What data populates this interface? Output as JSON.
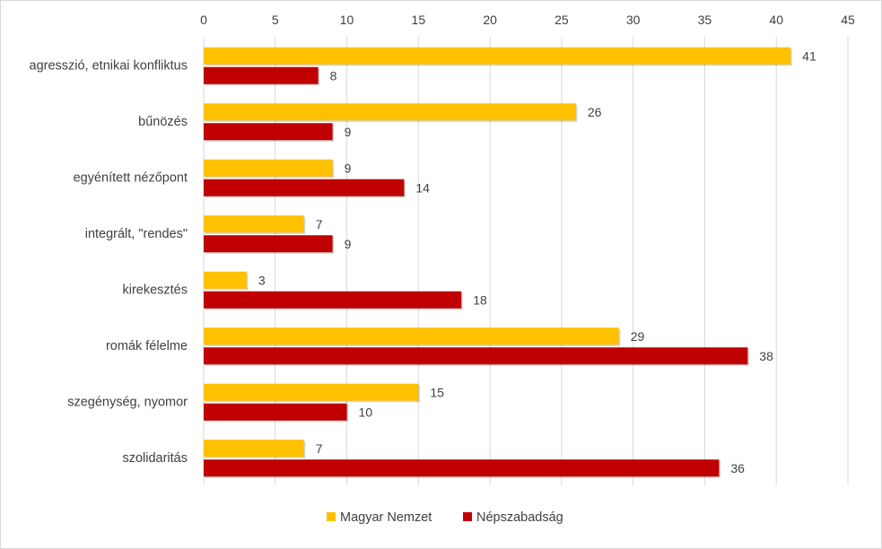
{
  "chart_data": {
    "type": "bar",
    "orientation": "horizontal",
    "categories": [
      "agresszió, etnikai konfliktus",
      "bűnözés",
      "egyénített nézőpont",
      "integrált, \"rendes\"",
      "kirekesztés",
      "romák félelme",
      "szegénység, nyomor",
      "szolidaritás"
    ],
    "series": [
      {
        "name": "Magyar Nemzet",
        "color": "#FFC000",
        "values": [
          41,
          26,
          9,
          7,
          3,
          29,
          15,
          7
        ]
      },
      {
        "name": "Népszabadság",
        "color": "#C00000",
        "values": [
          8,
          9,
          14,
          9,
          18,
          38,
          10,
          36
        ]
      }
    ],
    "xlim": [
      0,
      45
    ],
    "xticks": [
      "0",
      "5",
      "10",
      "15",
      "20",
      "25",
      "30",
      "35",
      "40",
      "45"
    ],
    "x_axis_position": "top",
    "grid": true,
    "data_labels": true,
    "legend_position": "bottom",
    "gridline_color": "#d9d9d9"
  }
}
